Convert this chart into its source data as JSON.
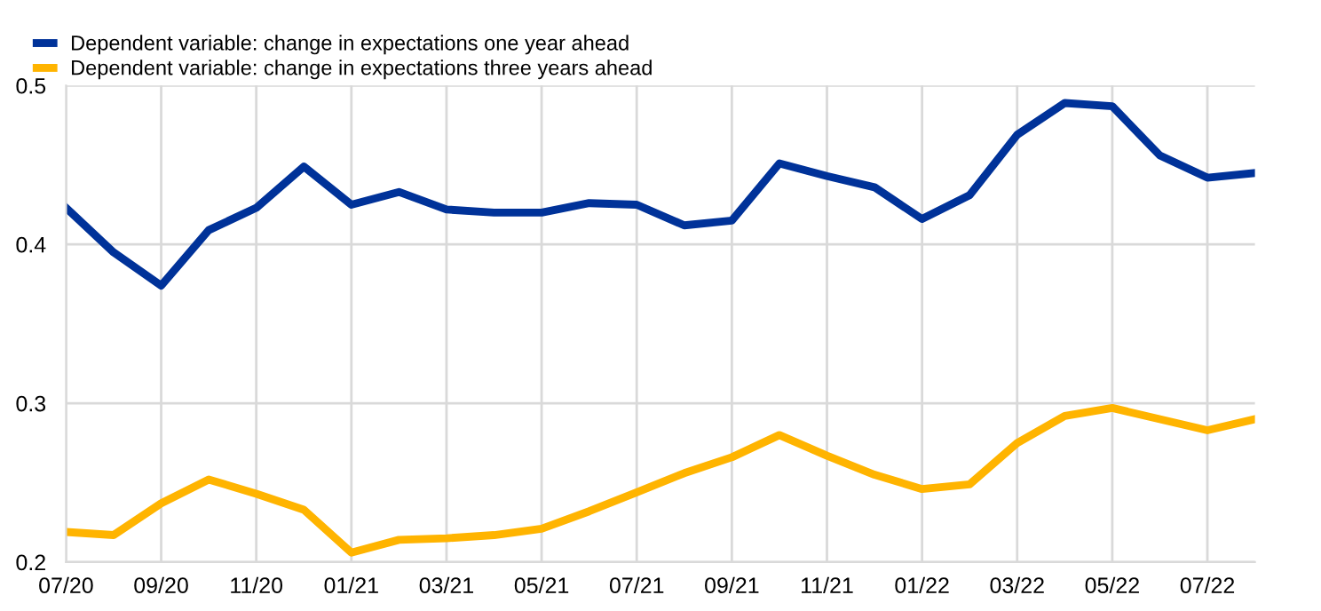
{
  "chart_data": {
    "type": "line",
    "categories": [
      "07/20",
      null,
      "09/20",
      null,
      "11/20",
      null,
      "01/21",
      null,
      "03/21",
      null,
      "05/21",
      null,
      "07/21",
      null,
      "09/21",
      null,
      "11/21",
      null,
      "01/22",
      null,
      "03/22",
      null,
      "05/22",
      null,
      "07/22",
      null
    ],
    "series": [
      {
        "name": "Dependent variable: change in expectations one year ahead",
        "color": "#003299",
        "values": [
          0.423,
          0.395,
          0.374,
          0.409,
          0.423,
          0.449,
          0.425,
          0.433,
          0.422,
          0.42,
          0.42,
          0.426,
          0.425,
          0.412,
          0.415,
          0.451,
          0.443,
          0.436,
          0.416,
          0.431,
          0.469,
          0.489,
          0.487,
          0.456,
          0.442,
          0.445
        ]
      },
      {
        "name": "Dependent variable: change in expectations three years ahead",
        "color": "#ffb400",
        "values": [
          0.219,
          0.217,
          0.237,
          0.252,
          0.243,
          0.233,
          0.206,
          0.214,
          0.215,
          0.217,
          0.221,
          0.232,
          0.244,
          0.256,
          0.266,
          0.28,
          0.267,
          0.255,
          0.246,
          0.249,
          0.275,
          0.292,
          0.297,
          0.29,
          0.283,
          0.29
        ]
      }
    ],
    "ylim": [
      0.2,
      0.5
    ],
    "yticks": [
      0.2,
      0.3,
      0.4,
      0.5
    ],
    "grid": true,
    "legend": "top left",
    "marker": "none",
    "line_style": "solid"
  }
}
